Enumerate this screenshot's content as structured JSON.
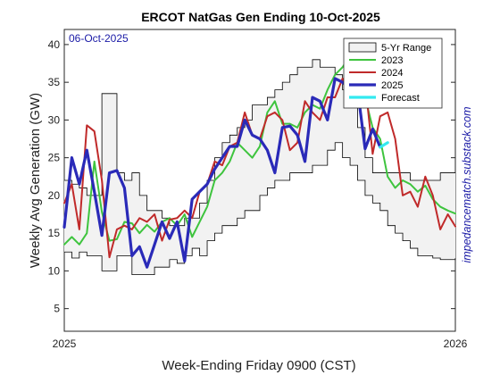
{
  "chart_data": {
    "type": "line",
    "title": "ERCOT NatGas Gen Ending 10-Oct-2025",
    "date_stamp": "06-Oct-2025",
    "watermark": "impedancematch.substack.com",
    "xlabel": "Week-Ending Friday 0900 (CST)",
    "ylabel": "Weekly Avg Generation (GW)",
    "ylim": [
      2,
      42
    ],
    "yticks": [
      5,
      10,
      15,
      20,
      25,
      30,
      35,
      40
    ],
    "xticks": [
      {
        "week": 0,
        "label": "2025"
      },
      {
        "week": 52,
        "label": "2026"
      }
    ],
    "xlim": [
      0,
      52
    ],
    "legend_position": "top-right",
    "legend": [
      "5-Yr Range",
      "2023",
      "2024",
      "2025",
      "Forecast"
    ],
    "colors": {
      "range_fill": "#f2f2f2",
      "range_edge": "#000000",
      "s2023": "#3ec43e",
      "s2024": "#c02a2a",
      "s2025": "#2a2ab8",
      "forecast": "#33eaf0",
      "date_stamp": "#1a1aa6",
      "watermark": "#1a1aa6"
    },
    "range_min": [
      12.5,
      11.7,
      12.5,
      12,
      12,
      10,
      10,
      12,
      12,
      9.5,
      9.5,
      9.5,
      10.5,
      10.5,
      11.5,
      11,
      12,
      13,
      12,
      14,
      15,
      16,
      16,
      17,
      18,
      18,
      20,
      21,
      22,
      22,
      23,
      23,
      23,
      24,
      24,
      26,
      27,
      25,
      24,
      22,
      20,
      19,
      18,
      16,
      15,
      14,
      13,
      12,
      12,
      11.7,
      11.5,
      11.5,
      11.7
    ],
    "range_max": [
      22,
      21.5,
      21,
      20,
      20,
      33.5,
      33.5,
      23,
      22,
      23,
      20,
      18,
      18,
      17,
      16,
      16,
      17,
      17,
      19,
      22,
      25,
      27,
      28,
      29,
      30,
      32,
      32,
      33,
      34,
      35,
      36,
      37,
      37,
      38,
      37,
      37,
      36,
      34,
      32,
      29,
      25,
      23,
      23,
      23,
      23,
      23,
      22,
      22,
      22,
      22,
      23,
      23,
      23
    ],
    "series": [
      {
        "name": "2023",
        "start_week": 0,
        "values": [
          13.5,
          14.5,
          13.5,
          15,
          24.5,
          17.8,
          14,
          14.2,
          16.5,
          16.3,
          15,
          16.1,
          15.2,
          16.5,
          17,
          16,
          17.5,
          14.5,
          16.5,
          18.5,
          22,
          23,
          24.5,
          27,
          26,
          25,
          26.5,
          31,
          32.5,
          29.5,
          29.5,
          29,
          31,
          32,
          31.5,
          34,
          36,
          37,
          38.5,
          38.5,
          33,
          29,
          27.5,
          22.5,
          21,
          22,
          21.5,
          20.5,
          21.3,
          19.5,
          18.5,
          18,
          17.6
        ]
      },
      {
        "name": "2024",
        "start_week": 0,
        "values": [
          19,
          21.5,
          15.5,
          29.3,
          28.5,
          22,
          11.8,
          15.5,
          16,
          15.5,
          17,
          16.5,
          17.5,
          14,
          16.8,
          17,
          18,
          17,
          20.5,
          21.5,
          24.5,
          24,
          26.5,
          27,
          31,
          28,
          27.5,
          30.5,
          31,
          30,
          26,
          27,
          32.5,
          31,
          30,
          33,
          33,
          35.5,
          32,
          33.5,
          35,
          25.5,
          30.5,
          31,
          27.5,
          20,
          20.5,
          18.5,
          22.5,
          20,
          15.5,
          17.5,
          15.9
        ]
      },
      {
        "name": "2025",
        "start_week": 0,
        "values": [
          15.8,
          25,
          21.5,
          26,
          20.5,
          14.7,
          23,
          23.3,
          21,
          12,
          13.2,
          10.5,
          13.5,
          16.5,
          14.3,
          16.5,
          11.3,
          19.5,
          20.5,
          21.5,
          23.5,
          25,
          26.5,
          26.5,
          30,
          28,
          27.5,
          26,
          23,
          29,
          29.2,
          28,
          24.5,
          33,
          32.5,
          30,
          35.5,
          35,
          34,
          34,
          26.2,
          28.8,
          26.4
        ]
      },
      {
        "name": "Forecast",
        "start_week": 42,
        "values": [
          26.4,
          27
        ]
      }
    ]
  }
}
